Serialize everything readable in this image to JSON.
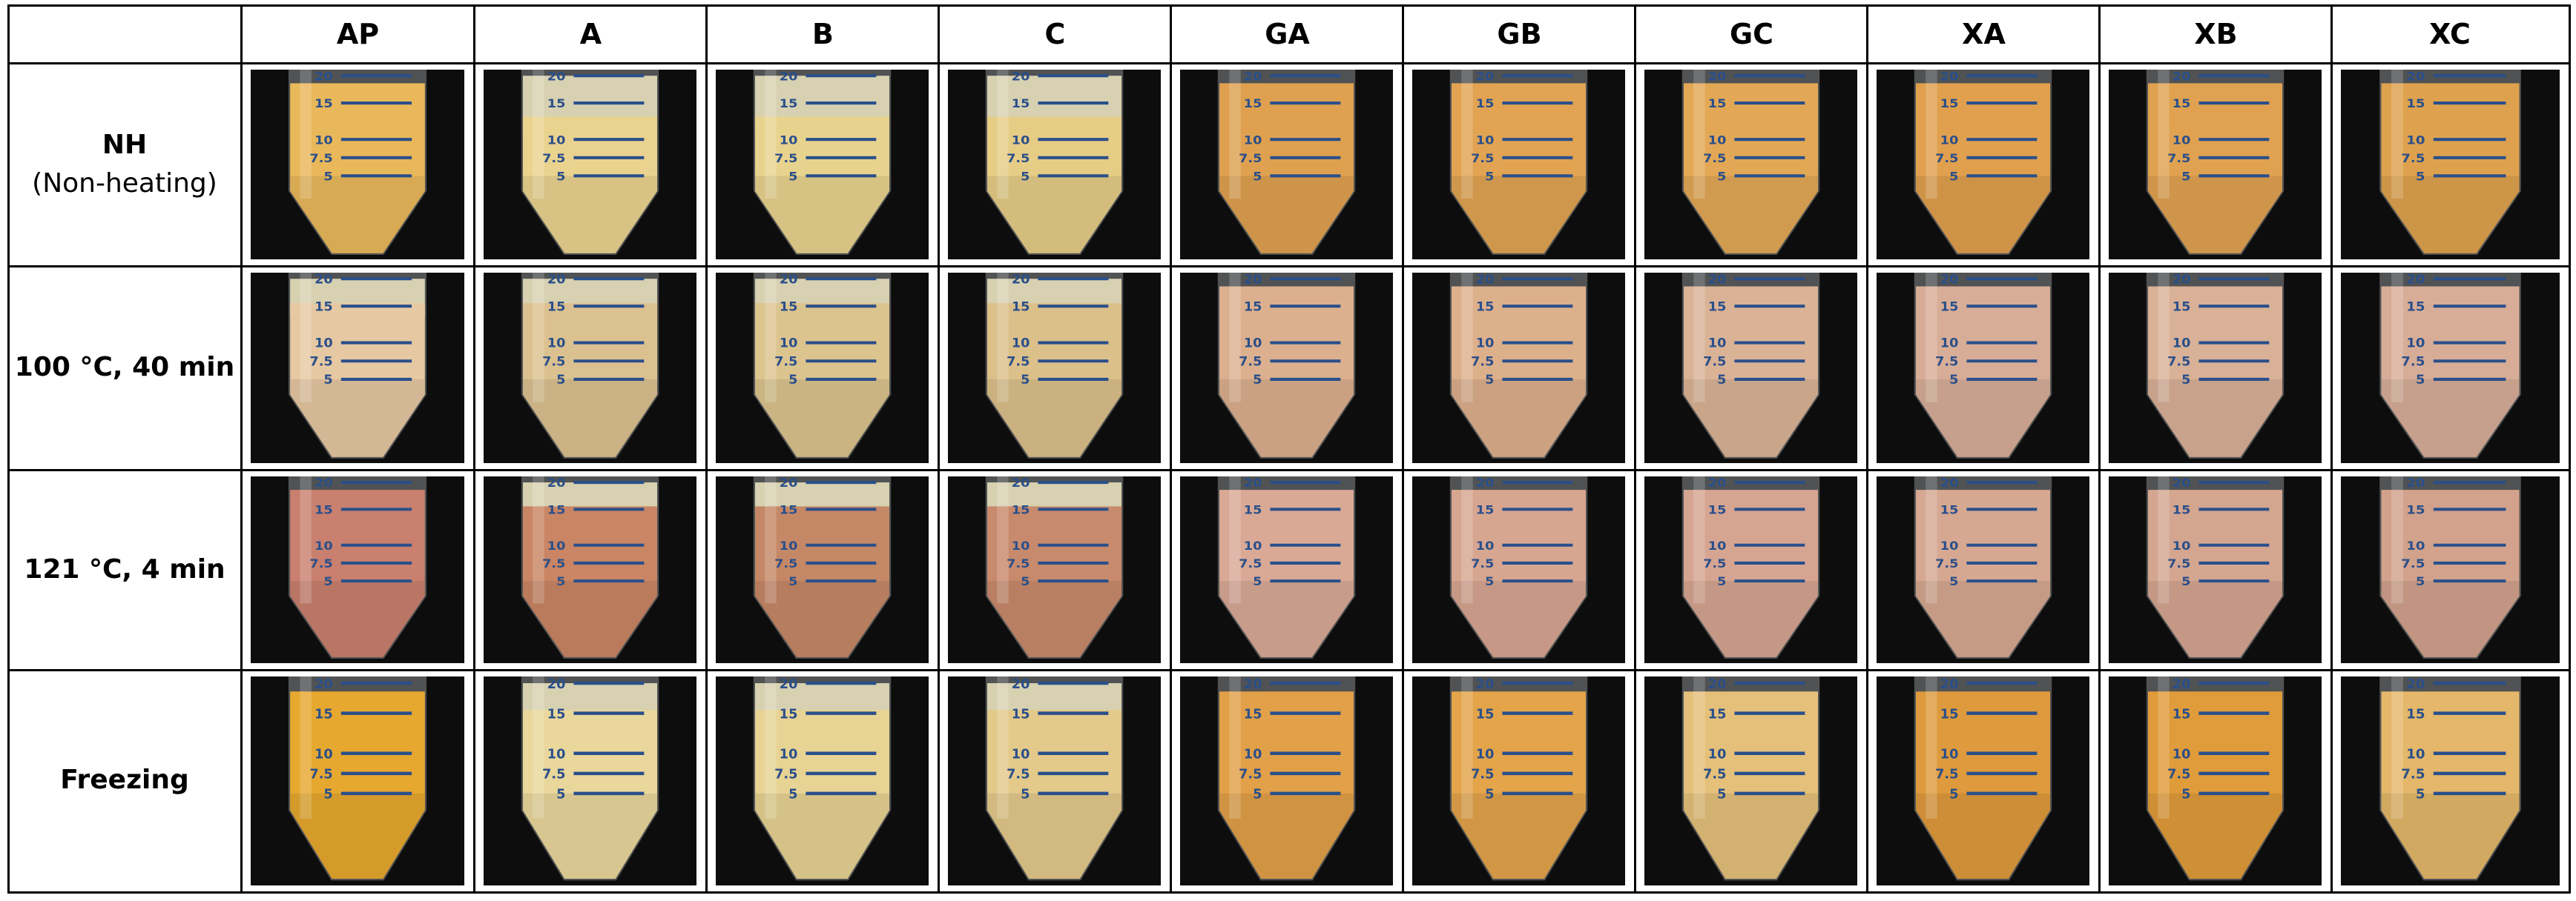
{
  "table": {
    "columns": [
      "AP",
      "A",
      "B",
      "C",
      "GA",
      "GB",
      "GC",
      "XA",
      "XB",
      "XC"
    ],
    "rows": [
      {
        "label": "NH",
        "sublabel": "(Non-heating)"
      },
      {
        "label": "100 °C, 40 min",
        "sublabel": ""
      },
      {
        "label": "121 °C, 4 min",
        "sublabel": ""
      },
      {
        "label": "Freezing",
        "sublabel": ""
      }
    ]
  },
  "tube_marks": [
    "20",
    "15",
    "10",
    "7.5",
    "5"
  ],
  "cell_colors": [
    [
      "#e9b85a",
      "#ead38f",
      "#e8d38e",
      "#e6cd86",
      "#dfa150",
      "#e2a452",
      "#e3a856",
      "#e1a04e",
      "#e0a250",
      "#dea24e"
    ],
    [
      "#e6c8a2",
      "#dcc190",
      "#dcc48e",
      "#dcc08a",
      "#dcb08e",
      "#ddb08c",
      "#dab396",
      "#d8ad98",
      "#d9b197",
      "#d7ad98"
    ],
    [
      "#c9806e",
      "#c98564",
      "#c58866",
      "#c88a6c",
      "#d9a996",
      "#d7a690",
      "#d6a592",
      "#d6a892",
      "#d4a690",
      "#d2a28c"
    ],
    [
      "#e7a830",
      "#e9d79c",
      "#e7d393",
      "#e3c98a",
      "#e2a048",
      "#e3a44a",
      "#e5c07a",
      "#de9a3c",
      "#e09c3a",
      "#e4b76a"
    ]
  ]
}
